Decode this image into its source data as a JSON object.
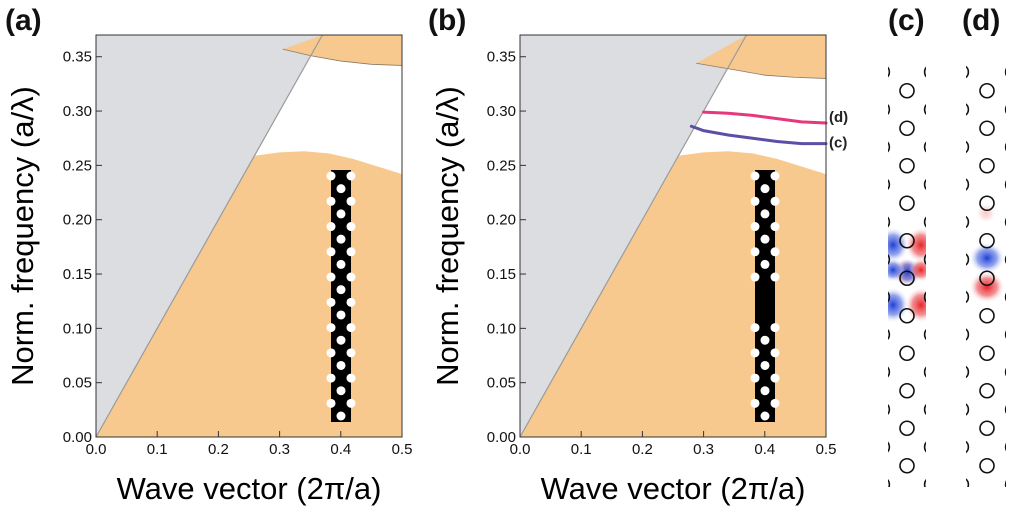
{
  "colors": {
    "light_cone": "#dcdde0",
    "continuum": "#f8c98e",
    "mode_d": "#e6397c",
    "mode_c": "#5b4fa6",
    "field_pos": "#e8242a",
    "field_neg": "#1f3fd6"
  },
  "chart_data": [
    {
      "type": "area",
      "panel_label": "(a)",
      "xlabel": "Wave vector (2π/a)",
      "ylabel": "Norm. frequency (a/λ)",
      "xlim": [
        0,
        0.5
      ],
      "ylim": [
        0,
        0.37
      ],
      "xticks": [
        "0.0",
        "0.1",
        "0.2",
        "0.3",
        "0.4",
        "0.5"
      ],
      "yticks": [
        "0.00",
        "0.05",
        "0.10",
        "0.15",
        "0.20",
        "0.25",
        "0.30",
        "0.35"
      ],
      "grid": false,
      "lower_band_edge": {
        "x": [
          0.26,
          0.3,
          0.34,
          0.38,
          0.42,
          0.46,
          0.5
        ],
        "y": [
          0.259,
          0.262,
          0.263,
          0.261,
          0.256,
          0.249,
          0.242
        ]
      },
      "upper_band_edge": {
        "x": [
          0.305,
          0.35,
          0.4,
          0.45,
          0.5
        ],
        "y": [
          0.357,
          0.351,
          0.346,
          0.343,
          0.342
        ]
      },
      "inset": "waveguide-without-defect"
    },
    {
      "type": "line",
      "panel_label": "(b)",
      "xlabel": "Wave vector (2π/a)",
      "ylabel": "Norm. frequency (a/λ)",
      "xlim": [
        0,
        0.5
      ],
      "ylim": [
        0,
        0.37
      ],
      "xticks": [
        "0.0",
        "0.1",
        "0.2",
        "0.3",
        "0.4",
        "0.5"
      ],
      "yticks": [
        "0.00",
        "0.05",
        "0.10",
        "0.15",
        "0.20",
        "0.25",
        "0.30",
        "0.35"
      ],
      "grid": false,
      "lower_band_edge": {
        "x": [
          0.26,
          0.3,
          0.34,
          0.38,
          0.42,
          0.46,
          0.5
        ],
        "y": [
          0.259,
          0.262,
          0.263,
          0.261,
          0.256,
          0.249,
          0.242
        ]
      },
      "upper_band_edge": {
        "x": [
          0.288,
          0.35,
          0.4,
          0.45,
          0.5
        ],
        "y": [
          0.344,
          0.338,
          0.333,
          0.331,
          0.33
        ]
      },
      "series": [
        {
          "name": "(d)",
          "x": [
            0.3,
            0.34,
            0.38,
            0.42,
            0.46,
            0.5
          ],
          "y": [
            0.299,
            0.298,
            0.296,
            0.293,
            0.29,
            0.289
          ]
        },
        {
          "name": "(c)",
          "x": [
            0.28,
            0.3,
            0.34,
            0.38,
            0.42,
            0.46,
            0.5
          ],
          "y": [
            0.286,
            0.282,
            0.278,
            0.275,
            0.272,
            0.27,
            0.27
          ]
        }
      ],
      "inset": "waveguide-with-defect"
    }
  ],
  "field_panels": [
    {
      "label": "(c)"
    },
    {
      "label": "(d)"
    }
  ]
}
